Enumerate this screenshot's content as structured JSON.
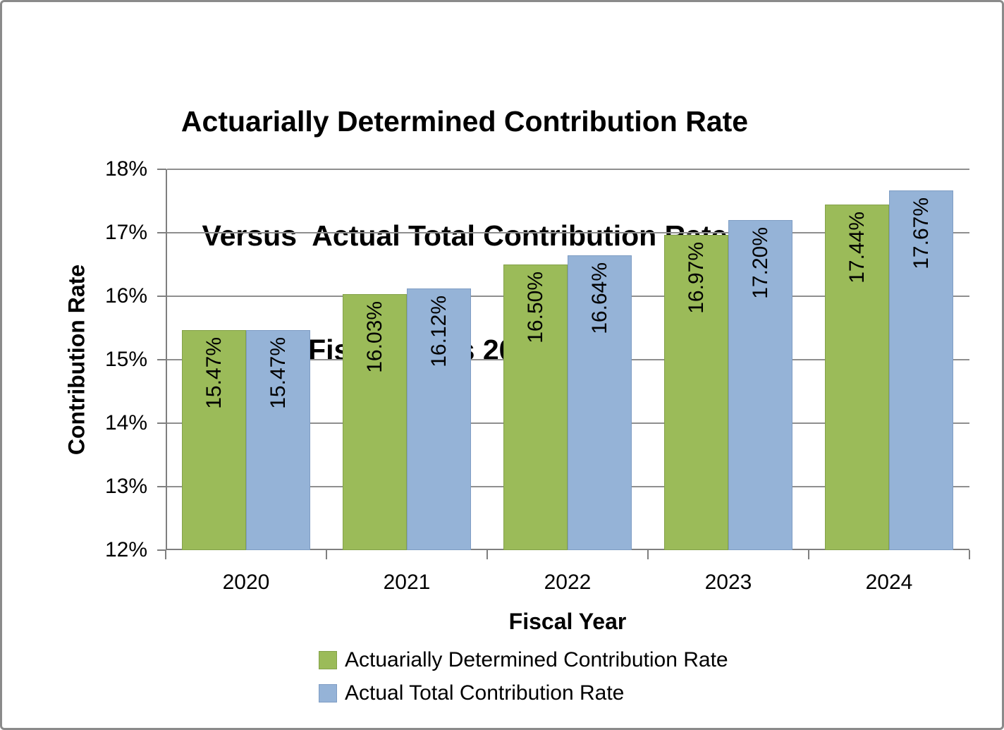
{
  "title": {
    "line1": "Actuarially Determined Contribution Rate",
    "line2": "Versus  Actual Total Contribution Rate",
    "line3": "Fiscal Years 2020-2024"
  },
  "chart_data": {
    "type": "bar",
    "title": "Actuarially Determined Contribution Rate Versus Actual Total Contribution Rate Fiscal Years 2020-2024",
    "categories": [
      "2020",
      "2021",
      "2022",
      "2023",
      "2024"
    ],
    "series": [
      {
        "name": "Actuarially Determined Contribution Rate",
        "color": "#9BBB59",
        "border_color": "#84a24a",
        "values": [
          15.47,
          16.03,
          16.5,
          16.97,
          17.44
        ],
        "value_labels": [
          "15.47%",
          "16.03%",
          "16.50%",
          "16.97%",
          "17.44%"
        ]
      },
      {
        "name": "Actual Total Contribution Rate",
        "color": "#95B3D7",
        "border_color": "#7f9dc4",
        "values": [
          15.47,
          16.12,
          16.64,
          17.2,
          17.67
        ],
        "value_labels": [
          "15.47%",
          "16.12%",
          "16.64%",
          "17.20%",
          "17.67%"
        ]
      }
    ],
    "xlabel": "Fiscal Year",
    "ylabel": "Contribution Rate",
    "ylim": [
      12,
      18
    ],
    "ytick_step": 1,
    "ytick_labels": [
      "12%",
      "13%",
      "14%",
      "15%",
      "16%",
      "17%",
      "18%"
    ],
    "grid": true,
    "legend_position": "bottom"
  },
  "colors": {
    "gridline": "#8f8f8f",
    "axis": "#7f7f7f",
    "text": "#000000",
    "frame_border": "#8a8a8a",
    "background": "#ffffff"
  }
}
